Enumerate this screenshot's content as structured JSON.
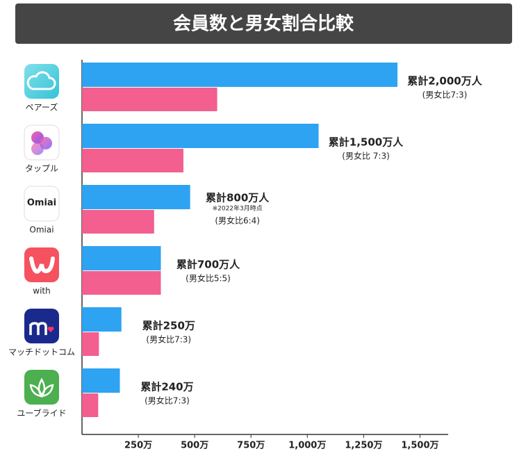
{
  "chart_data": {
    "type": "bar",
    "orientation": "horizontal",
    "title": "会員数と男女割合比較",
    "categories": [
      "ペアーズ",
      "タップル",
      "Omiai",
      "with",
      "マッチドットコム",
      "ユーブライド"
    ],
    "series": [
      {
        "color": "#2ea3f2",
        "values": [
          1400,
          1050,
          480,
          350,
          175,
          168
        ]
      },
      {
        "color": "#f35f8e",
        "values": [
          600,
          450,
          320,
          350,
          75,
          72
        ]
      }
    ],
    "annotations": [
      {
        "total": "累計2,000万人",
        "ratio": "(男女比7:3)"
      },
      {
        "total": "累計1,500万人",
        "ratio": "(男女比 7:3)"
      },
      {
        "total": "累計800万人",
        "note": "※2022年3月時点",
        "ratio": "(男女比6:4)"
      },
      {
        "total": "累計700万人",
        "ratio": "(男女比5:5)"
      },
      {
        "total": "累計250万",
        "ratio": "(男女比7:3)"
      },
      {
        "total": "累計240万",
        "ratio": "(男女比7:3)"
      }
    ],
    "xlim": [
      0,
      1625
    ],
    "xticks": [
      {
        "value": 250,
        "label": "250万"
      },
      {
        "value": 500,
        "label": "500万"
      },
      {
        "value": 750,
        "label": "750万"
      },
      {
        "value": 1000,
        "label": "1,000万"
      },
      {
        "value": 1250,
        "label": "1,250万"
      },
      {
        "value": 1500,
        "label": "1,500万"
      }
    ]
  }
}
